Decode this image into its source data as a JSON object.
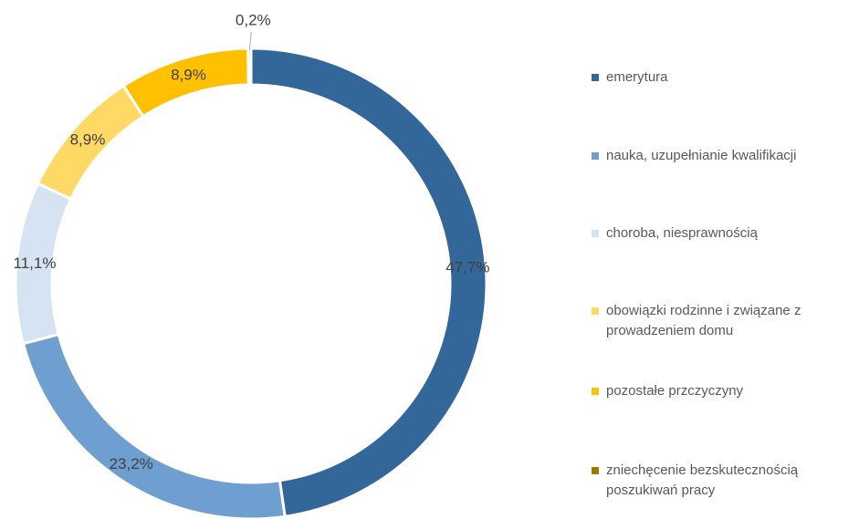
{
  "chart_data": {
    "type": "donut",
    "categories": [
      "emerytura",
      "nauka, uzupełnianie kwalifikacji",
      "choroba, niesprawnością",
      "obowiązki rodzinne i związane z prowadzeniem domu",
      "pozostałe przczyczyny",
      "zniechęcenie bezskutecznością poszukiwań pracy"
    ],
    "values": [
      47.7,
      23.2,
      11.1,
      8.9,
      8.9,
      0.2
    ],
    "value_labels": [
      "47,7%",
      "23,2%",
      "11,1%",
      "8,9%",
      "8,9%",
      "0,2%"
    ],
    "colors": [
      "#336699",
      "#6f9fd0",
      "#d5e3f2",
      "#ffd966",
      "#ffc000",
      "#9c7a00"
    ],
    "legend": "right"
  }
}
